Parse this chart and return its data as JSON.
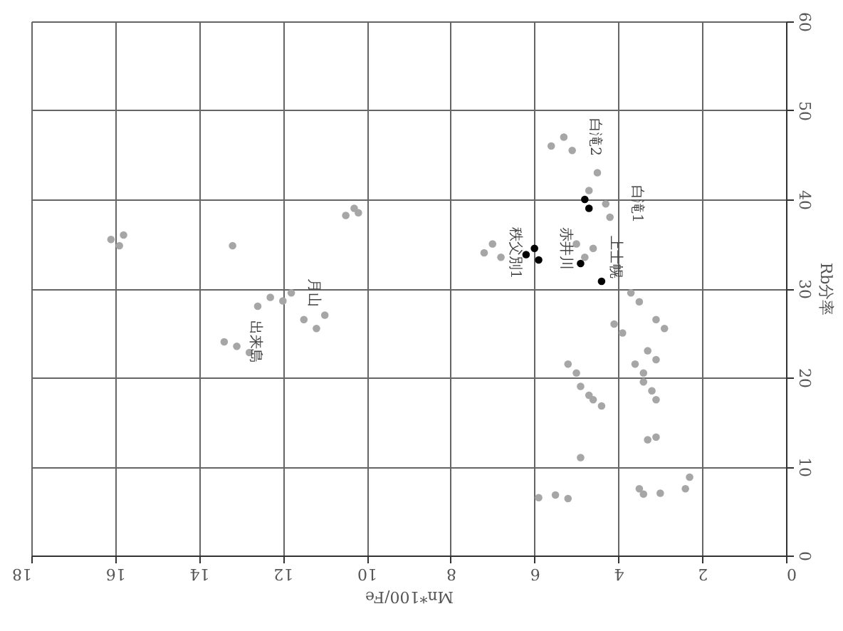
{
  "chart_data": {
    "type": "scatter",
    "xlabel": "Mn*100/Fe",
    "ylabel": "Rb分率",
    "xlim": [
      18,
      0
    ],
    "ylim": [
      0,
      60
    ],
    "xticks": [
      0,
      2,
      4,
      6,
      8,
      10,
      12,
      14,
      16,
      18
    ],
    "yticks": [
      0,
      10,
      20,
      30,
      40,
      50,
      60
    ],
    "grid": true,
    "marker": "circle",
    "series": [
      {
        "color": "#a6a6a6",
        "x": [
          16.1,
          15.9,
          15.8,
          13.2,
          10.5,
          10.3,
          10.2,
          12.6,
          12.3,
          12.0,
          11.8,
          11.5,
          11.2,
          11.0,
          13.4,
          13.1,
          12.8,
          7.2,
          7.0,
          6.8,
          5.6,
          5.3,
          5.1,
          4.7,
          4.5,
          4.3,
          4.2,
          5.0,
          4.8,
          4.6,
          3.7,
          3.5,
          4.1,
          3.9,
          3.1,
          2.9,
          3.3,
          3.1,
          3.6,
          3.4,
          3.4,
          3.2,
          3.1,
          5.2,
          5.0,
          4.9,
          4.7,
          4.6,
          4.4,
          4.9,
          5.9,
          5.5,
          5.2,
          3.3,
          3.1,
          3.5,
          3.4,
          3.0,
          2.4,
          2.3
        ],
        "values": [
          35.5,
          34.8,
          36.0,
          34.8,
          38.2,
          39.0,
          38.5,
          28.0,
          29.0,
          28.6,
          29.5,
          26.5,
          25.5,
          27.0,
          24.0,
          23.5,
          22.8,
          34.0,
          35.0,
          33.5,
          46.0,
          47.0,
          45.5,
          41.0,
          43.0,
          39.5,
          38.0,
          35.0,
          33.5,
          34.5,
          29.5,
          28.5,
          26.0,
          25.0,
          26.5,
          25.5,
          23.0,
          22.0,
          21.5,
          20.5,
          19.5,
          18.5,
          17.5,
          21.5,
          20.5,
          19.0,
          18.0,
          17.5,
          16.8,
          11.0,
          6.5,
          6.8,
          6.4,
          13.0,
          13.3,
          7.5,
          6.9,
          7.0,
          7.5,
          8.8
        ]
      },
      {
        "color": "#000000",
        "x": [
          6.2,
          6.0,
          5.9,
          4.8,
          4.7,
          4.9,
          4.4
        ],
        "values": [
          33.8,
          34.5,
          33.2,
          40.0,
          39.0,
          32.8,
          30.8
        ]
      }
    ],
    "annotations": [
      {
        "text": "白滝2",
        "x": 5.3,
        "y": 47.0
      },
      {
        "text": "白滝1",
        "x": 4.3,
        "y": 39.5
      },
      {
        "text": "赤井川",
        "x": 6.0,
        "y": 34.5
      },
      {
        "text": "秩父別1",
        "x": 7.2,
        "y": 34.0
      },
      {
        "text": "上士幌",
        "x": 4.8,
        "y": 33.5
      },
      {
        "text": "月山",
        "x": 12.0,
        "y": 29.5
      },
      {
        "text": "出来島",
        "x": 13.4,
        "y": 24.0
      }
    ]
  }
}
